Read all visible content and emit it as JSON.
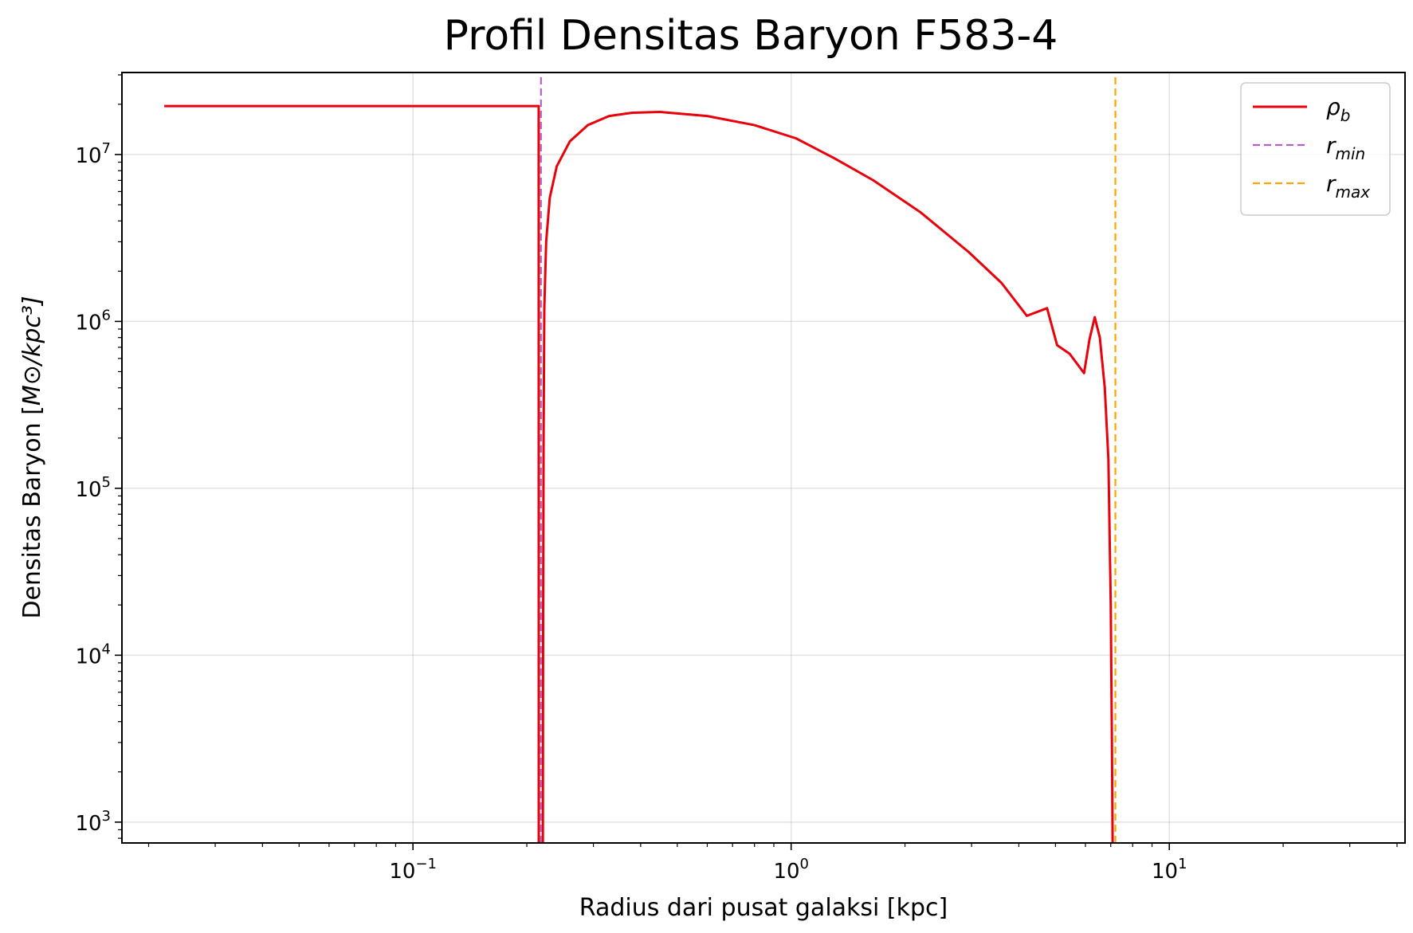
{
  "chart_data": {
    "type": "line",
    "title": "Profil Densitas Baryon F583-4",
    "xlabel": "Radius dari pusat galaksi [kpc]",
    "ylabel_text": "Densitas Baryon [",
    "ylabel_math": "M⊙/kpc³]",
    "xscale": "log",
    "yscale": "log",
    "xlim": [
      0.017,
      42
    ],
    "ylim": [
      750,
      31000000
    ],
    "grid": true,
    "legend_position": "top-right",
    "x_ticks": [
      {
        "value": 0.1,
        "base": "10",
        "exp": "−1"
      },
      {
        "value": 1,
        "base": "10",
        "exp": "0"
      },
      {
        "value": 10,
        "base": "10",
        "exp": "1"
      }
    ],
    "y_ticks": [
      {
        "value": 1000,
        "base": "10",
        "exp": "3"
      },
      {
        "value": 10000,
        "base": "10",
        "exp": "4"
      },
      {
        "value": 100000,
        "base": "10",
        "exp": "5"
      },
      {
        "value": 1000000,
        "base": "10",
        "exp": "6"
      },
      {
        "value": 10000000,
        "base": "10",
        "exp": "7"
      }
    ],
    "series": [
      {
        "name": "ρ_b",
        "legend_main": "ρ",
        "legend_sub": "b",
        "color": "#e8000b",
        "style": "solid",
        "x": [
          0.022,
          0.215,
          0.2151,
          0.218,
          0.2205,
          0.2208,
          0.2215,
          0.2225,
          0.225,
          0.23,
          0.24,
          0.26,
          0.29,
          0.33,
          0.38,
          0.45,
          0.6,
          0.8,
          1.03,
          1.3,
          1.65,
          2.2,
          2.95,
          3.6,
          4.2,
          4.75,
          5.05,
          5.45,
          5.95,
          6.15,
          6.35,
          6.55,
          6.75,
          6.9,
          7.0,
          7.05,
          7.08
        ],
        "y": [
          19500000,
          19500000,
          750,
          750,
          750,
          10000,
          200000,
          1200000,
          3000000,
          5500000,
          8500000,
          12000000,
          15000000,
          17000000,
          17800000,
          18000000,
          17000000,
          15000000,
          12500000,
          9500000,
          7000000,
          4500000,
          2600000,
          1700000,
          1080000,
          1200000,
          720000,
          640000,
          490000,
          780000,
          1060000,
          800000,
          400000,
          150000,
          20000,
          3000,
          750
        ]
      },
      {
        "name": "r_min",
        "legend_main": "r",
        "legend_sub": "min",
        "color": "#b55fc6",
        "style": "dashed",
        "x": [
          0.218,
          0.218
        ],
        "y": [
          750,
          31000000
        ]
      },
      {
        "name": "r_max",
        "legend_main": "r",
        "legend_sub": "max",
        "color": "#ffa500",
        "style": "dashed",
        "x": [
          7.2,
          7.2
        ],
        "y": [
          750,
          31000000
        ]
      }
    ]
  }
}
